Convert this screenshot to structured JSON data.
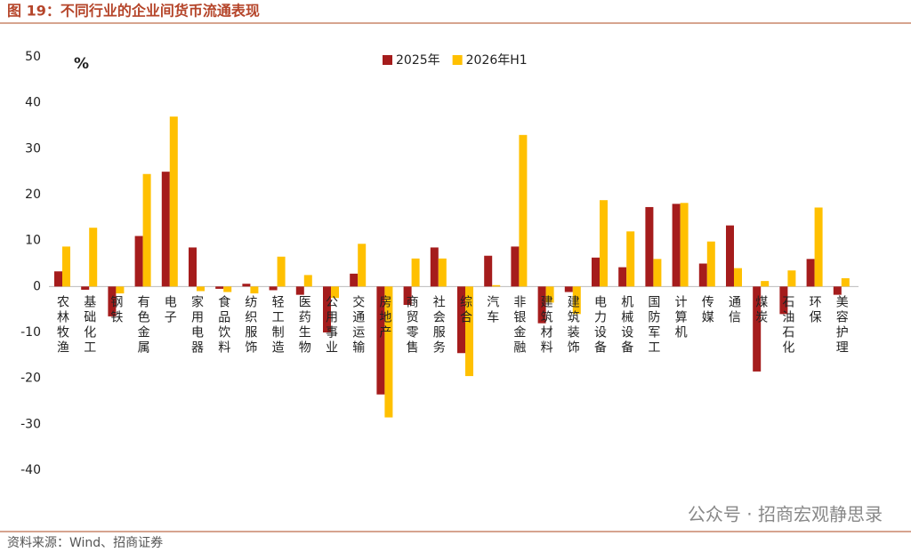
{
  "chart_data": {
    "type": "bar",
    "title": "图 19：不同行业的企业间货币流通表现",
    "y_unit": "%",
    "source": "资料来源：Wind、招商证券",
    "watermark": "公众号 · 招商宏观静思录",
    "categories": [
      "农林牧渔",
      "基础化工",
      "钢铁",
      "有色金属",
      "电子",
      "家用电器",
      "食品饮料",
      "纺织服饰",
      "轻工制造",
      "医药生物",
      "公用事业",
      "交通运输",
      "房地产",
      "商贸零售",
      "社会服务",
      "综合",
      "汽车",
      "非银金融",
      "建筑材料",
      "建筑装饰",
      "电力设备",
      "机械设备",
      "国防军工",
      "计算机",
      "传媒",
      "通信",
      "煤炭",
      "石油石化",
      "环保",
      "美容护理"
    ],
    "series": [
      {
        "name": "2025年",
        "color": "#a51c1c",
        "values": [
          3.3,
          -0.7,
          -6.5,
          11,
          25,
          8.5,
          -0.5,
          0.6,
          -0.8,
          -1.8,
          -10,
          2.8,
          -23.5,
          -4,
          8.5,
          -14.5,
          6.7,
          8.7,
          -8,
          -1.2,
          6.3,
          4.2,
          17.3,
          18,
          5,
          13.3,
          -18.5,
          -6,
          6,
          -1.8
        ]
      },
      {
        "name": "2026年H1",
        "color": "#ffc000",
        "values": [
          8.7,
          12.8,
          -1.5,
          24.5,
          37,
          -1,
          -1.2,
          -1.5,
          6.5,
          2.5,
          -2.5,
          9.3,
          -28.5,
          6.1,
          6.1,
          -19.5,
          0.3,
          33,
          -3.5,
          -6,
          18.8,
          12,
          6,
          18.2,
          9.8,
          4,
          1.2,
          3.5,
          17.2,
          1.8
        ]
      }
    ],
    "ylim": [
      -40,
      50
    ],
    "yticks": [
      -40,
      -30,
      -20,
      -10,
      0,
      10,
      20,
      30,
      40,
      50
    ],
    "legend_position": "top",
    "grid": false
  }
}
